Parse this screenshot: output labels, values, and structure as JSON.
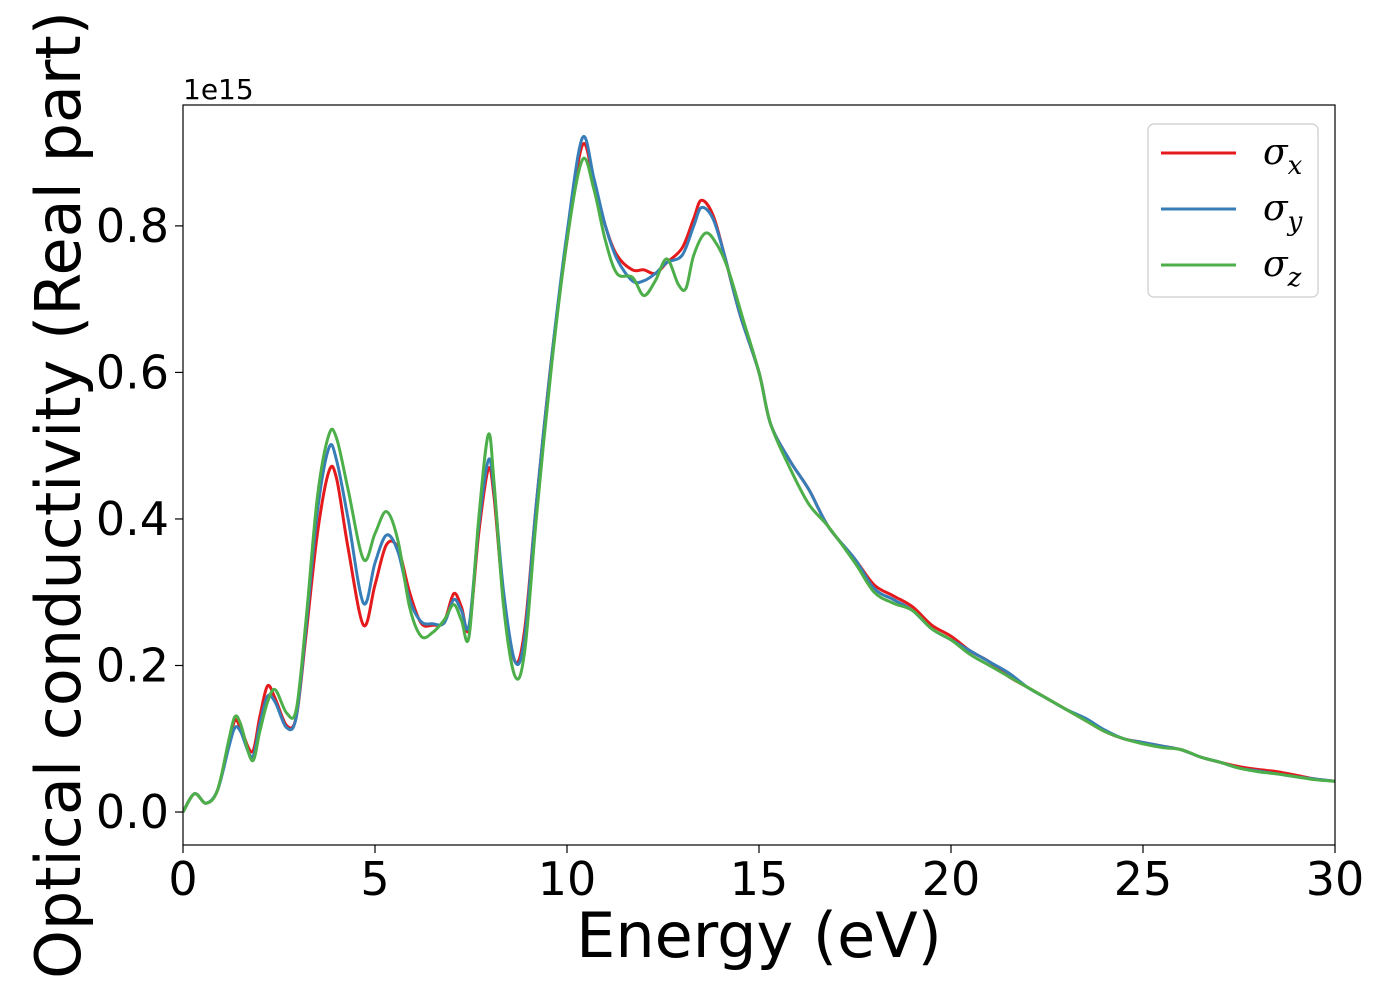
{
  "chart_data": {
    "type": "line",
    "xlabel": "Energy (eV)",
    "ylabel": "Optical conductivity (Real part)",
    "y_multiplier": "1e15",
    "xlim": [
      0,
      30
    ],
    "ylim": [
      -0.045,
      0.965
    ],
    "xticks": [
      0,
      5,
      10,
      15,
      20,
      25,
      30
    ],
    "yticks": [
      0.0,
      0.2,
      0.4,
      0.6,
      0.8
    ],
    "xtick_labels": [
      "0",
      "5",
      "10",
      "15",
      "20",
      "25",
      "30"
    ],
    "ytick_labels": [
      "0.0",
      "0.2",
      "0.4",
      "0.6",
      "0.8"
    ],
    "grid": false,
    "legend_position": "top-right",
    "series": [
      {
        "name": "σx",
        "symbol": "σ",
        "subscript": "x",
        "color": "#e41a1c",
        "points": [
          [
            0.0,
            0.0
          ],
          [
            0.3,
            0.025
          ],
          [
            0.6,
            0.012
          ],
          [
            0.9,
            0.03
          ],
          [
            1.2,
            0.095
          ],
          [
            1.35,
            0.125
          ],
          [
            1.5,
            0.115
          ],
          [
            1.8,
            0.082
          ],
          [
            2.0,
            0.13
          ],
          [
            2.2,
            0.172
          ],
          [
            2.4,
            0.155
          ],
          [
            2.7,
            0.118
          ],
          [
            2.95,
            0.13
          ],
          [
            3.2,
            0.24
          ],
          [
            3.5,
            0.38
          ],
          [
            3.8,
            0.465
          ],
          [
            4.0,
            0.455
          ],
          [
            4.3,
            0.36
          ],
          [
            4.7,
            0.255
          ],
          [
            5.0,
            0.31
          ],
          [
            5.3,
            0.365
          ],
          [
            5.6,
            0.36
          ],
          [
            5.9,
            0.3
          ],
          [
            6.2,
            0.258
          ],
          [
            6.5,
            0.255
          ],
          [
            6.8,
            0.26
          ],
          [
            7.05,
            0.298
          ],
          [
            7.25,
            0.28
          ],
          [
            7.45,
            0.25
          ],
          [
            7.7,
            0.38
          ],
          [
            7.95,
            0.468
          ],
          [
            8.1,
            0.43
          ],
          [
            8.35,
            0.29
          ],
          [
            8.65,
            0.205
          ],
          [
            8.9,
            0.25
          ],
          [
            9.2,
            0.42
          ],
          [
            9.6,
            0.62
          ],
          [
            10.0,
            0.78
          ],
          [
            10.4,
            0.91
          ],
          [
            10.7,
            0.86
          ],
          [
            11.0,
            0.8
          ],
          [
            11.3,
            0.76
          ],
          [
            11.7,
            0.74
          ],
          [
            12.0,
            0.74
          ],
          [
            12.3,
            0.735
          ],
          [
            12.6,
            0.75
          ],
          [
            13.0,
            0.77
          ],
          [
            13.3,
            0.81
          ],
          [
            13.5,
            0.835
          ],
          [
            13.8,
            0.815
          ],
          [
            14.1,
            0.76
          ],
          [
            14.5,
            0.68
          ],
          [
            15.0,
            0.6
          ],
          [
            15.3,
            0.53
          ],
          [
            15.8,
            0.48
          ],
          [
            16.3,
            0.44
          ],
          [
            16.8,
            0.39
          ],
          [
            17.5,
            0.345
          ],
          [
            18.0,
            0.31
          ],
          [
            18.5,
            0.295
          ],
          [
            19.0,
            0.28
          ],
          [
            19.5,
            0.255
          ],
          [
            20.0,
            0.24
          ],
          [
            20.5,
            0.22
          ],
          [
            21.0,
            0.205
          ],
          [
            21.5,
            0.185
          ],
          [
            22.0,
            0.17
          ],
          [
            22.5,
            0.155
          ],
          [
            23.0,
            0.14
          ],
          [
            23.5,
            0.125
          ],
          [
            24.0,
            0.11
          ],
          [
            24.5,
            0.1
          ],
          [
            25.0,
            0.095
          ],
          [
            25.5,
            0.09
          ],
          [
            26.0,
            0.085
          ],
          [
            26.5,
            0.075
          ],
          [
            27.0,
            0.068
          ],
          [
            27.5,
            0.062
          ],
          [
            28.0,
            0.058
          ],
          [
            28.5,
            0.055
          ],
          [
            29.0,
            0.05
          ],
          [
            29.5,
            0.045
          ],
          [
            30.0,
            0.042
          ]
        ]
      },
      {
        "name": "σy",
        "symbol": "σ",
        "subscript": "y",
        "color": "#377eb8",
        "points": [
          [
            0.0,
            0.0
          ],
          [
            0.3,
            0.025
          ],
          [
            0.6,
            0.012
          ],
          [
            0.9,
            0.03
          ],
          [
            1.2,
            0.09
          ],
          [
            1.35,
            0.115
          ],
          [
            1.5,
            0.11
          ],
          [
            1.8,
            0.075
          ],
          [
            2.0,
            0.12
          ],
          [
            2.2,
            0.158
          ],
          [
            2.4,
            0.15
          ],
          [
            2.7,
            0.115
          ],
          [
            2.95,
            0.13
          ],
          [
            3.2,
            0.25
          ],
          [
            3.5,
            0.41
          ],
          [
            3.8,
            0.497
          ],
          [
            4.0,
            0.48
          ],
          [
            4.3,
            0.4
          ],
          [
            4.7,
            0.285
          ],
          [
            5.0,
            0.34
          ],
          [
            5.3,
            0.378
          ],
          [
            5.6,
            0.355
          ],
          [
            5.9,
            0.29
          ],
          [
            6.2,
            0.26
          ],
          [
            6.5,
            0.257
          ],
          [
            6.8,
            0.258
          ],
          [
            7.05,
            0.29
          ],
          [
            7.25,
            0.275
          ],
          [
            7.45,
            0.255
          ],
          [
            7.7,
            0.39
          ],
          [
            7.95,
            0.48
          ],
          [
            8.1,
            0.44
          ],
          [
            8.35,
            0.3
          ],
          [
            8.65,
            0.205
          ],
          [
            8.9,
            0.24
          ],
          [
            9.2,
            0.42
          ],
          [
            9.6,
            0.62
          ],
          [
            10.0,
            0.79
          ],
          [
            10.4,
            0.92
          ],
          [
            10.7,
            0.865
          ],
          [
            11.0,
            0.8
          ],
          [
            11.3,
            0.755
          ],
          [
            11.7,
            0.725
          ],
          [
            12.0,
            0.725
          ],
          [
            12.3,
            0.735
          ],
          [
            12.6,
            0.75
          ],
          [
            13.0,
            0.76
          ],
          [
            13.3,
            0.8
          ],
          [
            13.5,
            0.825
          ],
          [
            13.8,
            0.81
          ],
          [
            14.1,
            0.76
          ],
          [
            14.5,
            0.68
          ],
          [
            15.0,
            0.6
          ],
          [
            15.3,
            0.53
          ],
          [
            15.8,
            0.48
          ],
          [
            16.3,
            0.44
          ],
          [
            16.8,
            0.39
          ],
          [
            17.5,
            0.345
          ],
          [
            18.0,
            0.305
          ],
          [
            18.5,
            0.29
          ],
          [
            19.0,
            0.275
          ],
          [
            19.5,
            0.25
          ],
          [
            20.0,
            0.235
          ],
          [
            20.5,
            0.22
          ],
          [
            21.0,
            0.205
          ],
          [
            21.5,
            0.19
          ],
          [
            22.0,
            0.17
          ],
          [
            22.5,
            0.155
          ],
          [
            23.0,
            0.14
          ],
          [
            23.5,
            0.128
          ],
          [
            24.0,
            0.112
          ],
          [
            24.5,
            0.1
          ],
          [
            25.0,
            0.095
          ],
          [
            25.5,
            0.09
          ],
          [
            26.0,
            0.085
          ],
          [
            26.5,
            0.075
          ],
          [
            27.0,
            0.068
          ],
          [
            27.5,
            0.06
          ],
          [
            28.0,
            0.056
          ],
          [
            28.5,
            0.052
          ],
          [
            29.0,
            0.048
          ],
          [
            29.5,
            0.045
          ],
          [
            30.0,
            0.042
          ]
        ]
      },
      {
        "name": "σz",
        "symbol": "σ",
        "subscript": "z",
        "color": "#4daf4a",
        "points": [
          [
            0.0,
            0.0
          ],
          [
            0.3,
            0.025
          ],
          [
            0.6,
            0.012
          ],
          [
            0.9,
            0.03
          ],
          [
            1.2,
            0.1
          ],
          [
            1.35,
            0.13
          ],
          [
            1.5,
            0.12
          ],
          [
            1.8,
            0.07
          ],
          [
            2.0,
            0.11
          ],
          [
            2.2,
            0.15
          ],
          [
            2.4,
            0.167
          ],
          [
            2.7,
            0.135
          ],
          [
            2.95,
            0.14
          ],
          [
            3.2,
            0.26
          ],
          [
            3.5,
            0.43
          ],
          [
            3.8,
            0.515
          ],
          [
            4.0,
            0.51
          ],
          [
            4.3,
            0.44
          ],
          [
            4.7,
            0.345
          ],
          [
            5.0,
            0.38
          ],
          [
            5.3,
            0.41
          ],
          [
            5.6,
            0.37
          ],
          [
            5.9,
            0.28
          ],
          [
            6.2,
            0.24
          ],
          [
            6.5,
            0.245
          ],
          [
            6.8,
            0.262
          ],
          [
            7.05,
            0.283
          ],
          [
            7.25,
            0.262
          ],
          [
            7.45,
            0.24
          ],
          [
            7.7,
            0.4
          ],
          [
            7.95,
            0.515
          ],
          [
            8.1,
            0.45
          ],
          [
            8.35,
            0.28
          ],
          [
            8.65,
            0.185
          ],
          [
            8.9,
            0.22
          ],
          [
            9.2,
            0.4
          ],
          [
            9.6,
            0.61
          ],
          [
            10.0,
            0.78
          ],
          [
            10.4,
            0.89
          ],
          [
            10.7,
            0.85
          ],
          [
            11.0,
            0.78
          ],
          [
            11.3,
            0.735
          ],
          [
            11.7,
            0.73
          ],
          [
            12.0,
            0.705
          ],
          [
            12.3,
            0.725
          ],
          [
            12.6,
            0.755
          ],
          [
            12.9,
            0.72
          ],
          [
            13.1,
            0.715
          ],
          [
            13.3,
            0.76
          ],
          [
            13.6,
            0.79
          ],
          [
            13.9,
            0.775
          ],
          [
            14.2,
            0.74
          ],
          [
            14.6,
            0.67
          ],
          [
            15.0,
            0.6
          ],
          [
            15.3,
            0.53
          ],
          [
            15.8,
            0.47
          ],
          [
            16.3,
            0.42
          ],
          [
            16.8,
            0.39
          ],
          [
            17.5,
            0.34
          ],
          [
            18.0,
            0.3
          ],
          [
            18.5,
            0.285
          ],
          [
            19.0,
            0.275
          ],
          [
            19.5,
            0.25
          ],
          [
            20.0,
            0.235
          ],
          [
            20.5,
            0.215
          ],
          [
            21.0,
            0.2
          ],
          [
            21.5,
            0.185
          ],
          [
            22.0,
            0.17
          ],
          [
            22.5,
            0.155
          ],
          [
            23.0,
            0.14
          ],
          [
            23.5,
            0.125
          ],
          [
            24.0,
            0.11
          ],
          [
            24.5,
            0.1
          ],
          [
            25.0,
            0.093
          ],
          [
            25.5,
            0.088
          ],
          [
            26.0,
            0.085
          ],
          [
            26.5,
            0.075
          ],
          [
            27.0,
            0.068
          ],
          [
            27.5,
            0.06
          ],
          [
            28.0,
            0.055
          ],
          [
            28.5,
            0.052
          ],
          [
            29.0,
            0.048
          ],
          [
            29.5,
            0.044
          ],
          [
            30.0,
            0.042
          ]
        ]
      }
    ]
  }
}
